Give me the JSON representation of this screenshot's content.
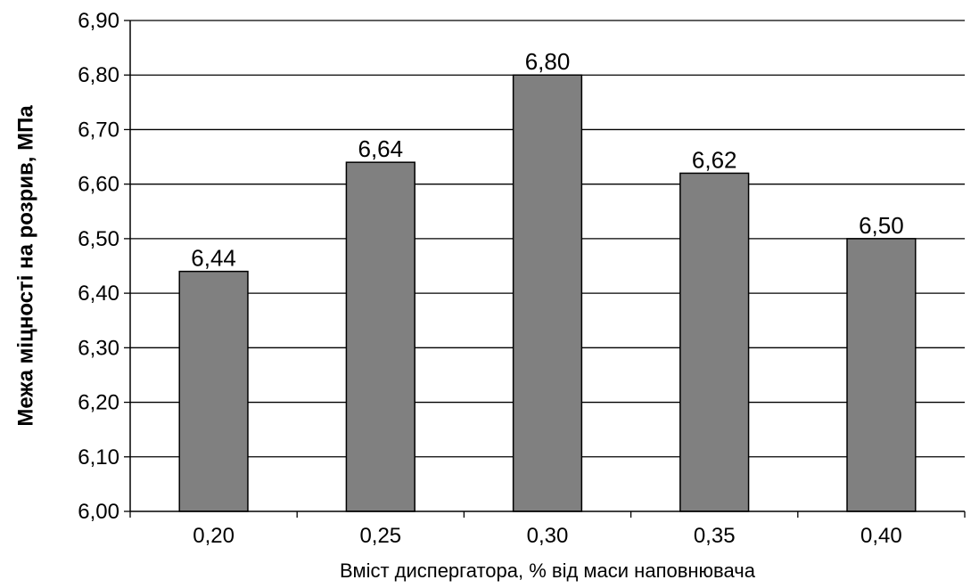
{
  "chart_data": {
    "type": "bar",
    "categories": [
      "0,20",
      "0,25",
      "0,30",
      "0,35",
      "0,40"
    ],
    "values": [
      6.44,
      6.64,
      6.8,
      6.62,
      6.5
    ],
    "data_labels": [
      "6,44",
      "6,64",
      "6,80",
      "6,62",
      "6,50"
    ],
    "xlabel": "Вміст диспергатора, % від маси наповнювача",
    "ylabel": "Межа міцності на розрив, МПа",
    "ylim": [
      6.0,
      6.9
    ],
    "yticks": [
      6.0,
      6.1,
      6.2,
      6.3,
      6.4,
      6.5,
      6.6,
      6.7,
      6.8,
      6.9
    ],
    "ytick_labels": [
      "6,00",
      "6,10",
      "6,20",
      "6,30",
      "6,40",
      "6,50",
      "6,60",
      "6,70",
      "6,80",
      "6,90"
    ],
    "grid": true,
    "bar_color": "#808080",
    "bar_edge_color": "#000000",
    "gridline_color": "#000000"
  }
}
